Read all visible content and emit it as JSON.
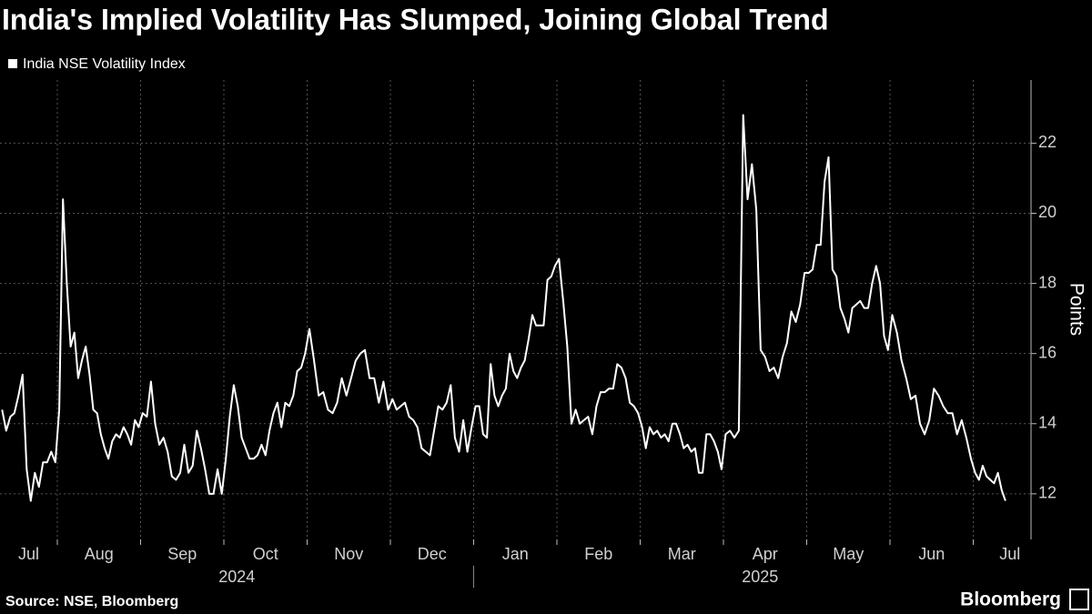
{
  "chart_data": {
    "type": "line",
    "title": "India's Implied Volatility Has Slumped, Joining Global Trend",
    "y_label": "Points",
    "source": "Source: NSE, Bloomberg",
    "brand": "Bloomberg",
    "grid": true,
    "ylim": [
      10.7,
      23.8
    ],
    "yticks": [
      12,
      14,
      16,
      18,
      20,
      22
    ],
    "xticks": [
      {
        "value": "2024-07",
        "label": "Jul"
      },
      {
        "value": "2024-08",
        "label": "Aug"
      },
      {
        "value": "2024-09",
        "label": "Sep"
      },
      {
        "value": "2024-10",
        "label": "Oct"
      },
      {
        "value": "2024-11",
        "label": "Nov"
      },
      {
        "value": "2024-12",
        "label": "Dec"
      },
      {
        "value": "2025-01",
        "label": "Jan"
      },
      {
        "value": "2025-02",
        "label": "Feb"
      },
      {
        "value": "2025-03",
        "label": "Mar"
      },
      {
        "value": "2025-04",
        "label": "Apr"
      },
      {
        "value": "2025-05",
        "label": "May"
      },
      {
        "value": "2025-06",
        "label": "Jun"
      },
      {
        "value": "2025-07",
        "label": "Jul"
      }
    ],
    "years": [
      "2024",
      "2025"
    ],
    "x": [
      "2024-07",
      "2024-07",
      "2024-07",
      "2024-07",
      "2024-07",
      "2024-07",
      "2024-07",
      "2024-07",
      "2024-07",
      "2024-07",
      "2024-07",
      "2024-07",
      "2024-07",
      "2024-07",
      "2024-08",
      "2024-08",
      "2024-08",
      "2024-08",
      "2024-08",
      "2024-08",
      "2024-08",
      "2024-08",
      "2024-08",
      "2024-08",
      "2024-08",
      "2024-08",
      "2024-08",
      "2024-08",
      "2024-08",
      "2024-08",
      "2024-08",
      "2024-08",
      "2024-08",
      "2024-08",
      "2024-08",
      "2024-08",
      "2024-09",
      "2024-09",
      "2024-09",
      "2024-09",
      "2024-09",
      "2024-09",
      "2024-09",
      "2024-09",
      "2024-09",
      "2024-09",
      "2024-09",
      "2024-09",
      "2024-09",
      "2024-09",
      "2024-09",
      "2024-09",
      "2024-09",
      "2024-09",
      "2024-09",
      "2024-09",
      "2024-10",
      "2024-10",
      "2024-10",
      "2024-10",
      "2024-10",
      "2024-10",
      "2024-10",
      "2024-10",
      "2024-10",
      "2024-10",
      "2024-10",
      "2024-10",
      "2024-10",
      "2024-10",
      "2024-10",
      "2024-10",
      "2024-10",
      "2024-10",
      "2024-10",
      "2024-10",
      "2024-10",
      "2024-11",
      "2024-11",
      "2024-11",
      "2024-11",
      "2024-11",
      "2024-11",
      "2024-11",
      "2024-11",
      "2024-11",
      "2024-11",
      "2024-11",
      "2024-11",
      "2024-11",
      "2024-11",
      "2024-11",
      "2024-11",
      "2024-11",
      "2024-11",
      "2024-12",
      "2024-12",
      "2024-12",
      "2024-12",
      "2024-12",
      "2024-12",
      "2024-12",
      "2024-12",
      "2024-12",
      "2024-12",
      "2024-12",
      "2024-12",
      "2024-12",
      "2024-12",
      "2024-12",
      "2024-12",
      "2024-12",
      "2024-12",
      "2024-12",
      "2024-12",
      "2025-01",
      "2025-01",
      "2025-01",
      "2025-01",
      "2025-01",
      "2025-01",
      "2025-01",
      "2025-01",
      "2025-01",
      "2025-01",
      "2025-01",
      "2025-01",
      "2025-01",
      "2025-01",
      "2025-01",
      "2025-01",
      "2025-01",
      "2025-01",
      "2025-01",
      "2025-01",
      "2025-01",
      "2025-01",
      "2025-02",
      "2025-02",
      "2025-02",
      "2025-02",
      "2025-02",
      "2025-02",
      "2025-02",
      "2025-02",
      "2025-02",
      "2025-02",
      "2025-02",
      "2025-02",
      "2025-02",
      "2025-02",
      "2025-02",
      "2025-02",
      "2025-02",
      "2025-02",
      "2025-02",
      "2025-02",
      "2025-03",
      "2025-03",
      "2025-03",
      "2025-03",
      "2025-03",
      "2025-03",
      "2025-03",
      "2025-03",
      "2025-03",
      "2025-03",
      "2025-03",
      "2025-03",
      "2025-03",
      "2025-03",
      "2025-03",
      "2025-03",
      "2025-03",
      "2025-03",
      "2025-03",
      "2025-03",
      "2025-03",
      "2025-03",
      "2025-04",
      "2025-04",
      "2025-04",
      "2025-04",
      "2025-04",
      "2025-04",
      "2025-04",
      "2025-04",
      "2025-04",
      "2025-04",
      "2025-04",
      "2025-04",
      "2025-04",
      "2025-04",
      "2025-04",
      "2025-04",
      "2025-04",
      "2025-04",
      "2025-04",
      "2025-05",
      "2025-05",
      "2025-05",
      "2025-05",
      "2025-05",
      "2025-05",
      "2025-05",
      "2025-05",
      "2025-05",
      "2025-05",
      "2025-05",
      "2025-05",
      "2025-05",
      "2025-05",
      "2025-05",
      "2025-05",
      "2025-05",
      "2025-05",
      "2025-05",
      "2025-05",
      "2025-05",
      "2025-06",
      "2025-06",
      "2025-06",
      "2025-06",
      "2025-06",
      "2025-06",
      "2025-06",
      "2025-06",
      "2025-06",
      "2025-06",
      "2025-06",
      "2025-06",
      "2025-06",
      "2025-06",
      "2025-06",
      "2025-06",
      "2025-06",
      "2025-06",
      "2025-07",
      "2025-07",
      "2025-07",
      "2025-07",
      "2025-07",
      "2025-07",
      "2025-07",
      "2025-07",
      "2025-07"
    ],
    "series": [
      {
        "name": "India NSE Volatility Index",
        "color": "#ffffff",
        "values": [
          14.4,
          13.8,
          14.2,
          14.3,
          14.8,
          15.4,
          12.7,
          11.8,
          12.6,
          12.2,
          12.9,
          12.9,
          13.2,
          12.9,
          14.4,
          20.4,
          18.0,
          16.2,
          16.6,
          15.3,
          15.8,
          16.2,
          15.4,
          14.4,
          14.3,
          13.7,
          13.3,
          13.0,
          13.5,
          13.7,
          13.6,
          13.9,
          13.7,
          13.4,
          14.1,
          13.9,
          14.3,
          14.2,
          15.2,
          14.0,
          13.4,
          13.6,
          13.2,
          12.5,
          12.4,
          12.6,
          13.4,
          12.6,
          12.8,
          13.8,
          13.3,
          12.7,
          12.0,
          12.0,
          12.7,
          12.0,
          13.0,
          14.2,
          15.1,
          14.5,
          13.6,
          13.3,
          13.0,
          13.0,
          13.1,
          13.4,
          13.1,
          13.8,
          14.3,
          14.6,
          13.9,
          14.6,
          14.5,
          14.8,
          15.5,
          15.6,
          16.0,
          16.7,
          15.8,
          14.8,
          14.9,
          14.4,
          14.3,
          14.6,
          15.3,
          14.8,
          15.3,
          15.8,
          16.0,
          16.1,
          15.3,
          15.3,
          14.6,
          15.2,
          14.4,
          14.7,
          14.4,
          14.5,
          14.6,
          14.2,
          14.1,
          13.9,
          13.3,
          13.2,
          13.1,
          13.8,
          14.5,
          14.4,
          14.6,
          15.1,
          13.6,
          13.2,
          14.1,
          13.2,
          13.9,
          14.5,
          14.5,
          13.7,
          13.6,
          15.7,
          14.8,
          14.5,
          14.8,
          15.0,
          16.0,
          15.5,
          15.3,
          15.6,
          15.8,
          16.4,
          17.1,
          16.8,
          16.8,
          16.8,
          18.1,
          18.2,
          18.5,
          18.7,
          17.5,
          16.2,
          14.0,
          14.4,
          14.0,
          14.1,
          14.2,
          13.7,
          14.5,
          14.9,
          14.9,
          15.0,
          15.0,
          15.7,
          15.6,
          15.3,
          14.6,
          14.5,
          14.3,
          13.9,
          13.3,
          13.9,
          13.7,
          13.8,
          13.6,
          13.7,
          13.5,
          14.0,
          14.0,
          13.7,
          13.3,
          13.4,
          13.2,
          13.3,
          12.6,
          12.6,
          13.7,
          13.7,
          13.5,
          13.2,
          12.7,
          13.7,
          13.8,
          13.6,
          13.8,
          22.8,
          20.4,
          21.4,
          20.1,
          16.1,
          15.9,
          15.5,
          15.6,
          15.3,
          15.9,
          16.3,
          17.2,
          16.9,
          17.4,
          18.3,
          18.3,
          18.4,
          19.1,
          19.1,
          20.9,
          21.6,
          18.4,
          18.2,
          17.3,
          17.0,
          16.6,
          17.3,
          17.4,
          17.5,
          17.3,
          17.3,
          18.0,
          18.5,
          18.0,
          16.5,
          16.1,
          17.1,
          16.6,
          15.8,
          15.3,
          14.7,
          14.8,
          14.0,
          13.7,
          14.1,
          15.0,
          14.8,
          14.5,
          14.3,
          14.3,
          13.7,
          14.1,
          13.6,
          13.0,
          12.6,
          12.4,
          12.8,
          12.5,
          12.4,
          12.3,
          12.6,
          12.1,
          11.8
        ]
      }
    ]
  }
}
